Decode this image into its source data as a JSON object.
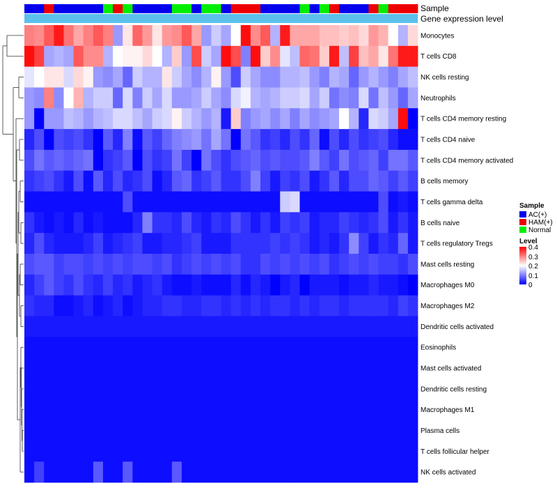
{
  "chart_data": {
    "type": "heatmap",
    "annotation_rows": [
      "Sample",
      "Gene expression level"
    ],
    "sample_groups": [
      "AC",
      "AC",
      "HAM",
      "AC",
      "AC",
      "AC",
      "AC",
      "AC",
      "Normal",
      "HAM",
      "Normal",
      "AC",
      "AC",
      "AC",
      "AC",
      "Normal",
      "Normal",
      "AC",
      "Normal",
      "Normal",
      "AC",
      "HAM",
      "HAM",
      "HAM",
      "AC",
      "AC",
      "AC",
      "AC",
      "Normal",
      "AC",
      "Normal",
      "HAM",
      "AC",
      "AC",
      "AC",
      "HAM",
      "Normal",
      "HAM",
      "HAM",
      "HAM"
    ],
    "sample_legend": {
      "title": "Sample",
      "items": [
        {
          "label": "AC(+)",
          "color": "#0000ee"
        },
        {
          "label": "HAM(+)",
          "color": "#ee0000"
        },
        {
          "label": "Normal",
          "color": "#00ee00"
        }
      ]
    },
    "gene_expression_color": "#5bc0ea",
    "level_legend": {
      "title": "Level",
      "ticks": [
        "0.4",
        "0.3",
        "0.2",
        "0.1",
        "0"
      ],
      "range": [
        0,
        0.4
      ]
    },
    "colors": {
      "low": "#0000ff",
      "mid": "#ffffff",
      "high": "#ff0000",
      "midpoint": 0.2
    },
    "row_labels": [
      "Monocytes",
      "T cells CD8",
      "NK cells resting",
      "Neutrophils",
      "T cells CD4 memory resting",
      "T cells CD4 naive",
      "T cells CD4 memory activated",
      "B cells memory",
      "T cells gamma delta",
      "B cells naive",
      "T cells regulatory  Tregs",
      "Mast cells resting",
      "Macrophages M0",
      "Macrophages M2",
      "Dendritic cells activated",
      "Eosinophils",
      "Mast cells activated",
      "Dendritic cells resting",
      "Macrophages M1",
      "Plasma cells",
      "T cells follicular helper",
      "NK cells activated"
    ],
    "values": [
      [
        0.3,
        0.29,
        0.33,
        0.38,
        0.31,
        0.27,
        0.3,
        0.33,
        0.3,
        0.12,
        0.22,
        0.32,
        0.28,
        0.22,
        0.28,
        0.29,
        0.33,
        0.27,
        0.12,
        0.16,
        0.13,
        0.2,
        0.39,
        0.29,
        0.33,
        0.14,
        0.38,
        0.27,
        0.27,
        0.27,
        0.25,
        0.25,
        0.24,
        0.25,
        0.23,
        0.28,
        0.26,
        0.2,
        0.14,
        0.23
      ],
      [
        0.39,
        0.35,
        0.13,
        0.14,
        0.13,
        0.33,
        0.29,
        0.29,
        0.14,
        0.2,
        0.21,
        0.21,
        0.23,
        0.2,
        0.14,
        0.24,
        0.12,
        0.34,
        0.16,
        0.13,
        0.39,
        0.34,
        0.1,
        0.39,
        0.24,
        0.29,
        0.18,
        0.15,
        0.32,
        0.31,
        0.24,
        0.38,
        0.15,
        0.35,
        0.25,
        0.27,
        0.22,
        0.31,
        0.38,
        0.38
      ],
      [
        0.18,
        0.2,
        0.22,
        0.22,
        0.17,
        0.23,
        0.21,
        0.12,
        0.11,
        0.13,
        0.08,
        0.16,
        0.14,
        0.14,
        0.22,
        0.16,
        0.13,
        0.11,
        0.14,
        0.21,
        0.12,
        0.06,
        0.16,
        0.13,
        0.11,
        0.11,
        0.14,
        0.14,
        0.15,
        0.12,
        0.1,
        0.14,
        0.13,
        0.08,
        0.12,
        0.14,
        0.12,
        0.1,
        0.13,
        0.15
      ],
      [
        0.12,
        0.11,
        0.3,
        0.11,
        0.2,
        0.26,
        0.14,
        0.16,
        0.16,
        0.08,
        0.17,
        0.1,
        0.16,
        0.13,
        0.17,
        0.12,
        0.12,
        0.13,
        0.16,
        0.13,
        0.11,
        0.17,
        0.19,
        0.14,
        0.13,
        0.14,
        0.16,
        0.16,
        0.17,
        0.13,
        0.16,
        0.09,
        0.11,
        0.1,
        0.17,
        0.09,
        0.15,
        0.12,
        0.08,
        0.13
      ],
      [
        0.12,
        0.0,
        0.12,
        0.12,
        0.15,
        0.14,
        0.12,
        0.14,
        0.15,
        0.17,
        0.17,
        0.15,
        0.13,
        0.16,
        0.17,
        0.21,
        0.16,
        0.14,
        0.12,
        0.14,
        0.02,
        0.24,
        0.1,
        0.12,
        0.13,
        0.11,
        0.13,
        0.1,
        0.13,
        0.11,
        0.12,
        0.13,
        0.2,
        0.14,
        0.03,
        0.17,
        0.16,
        0.13,
        0.39,
        0.0
      ],
      [
        0.03,
        0.06,
        0.0,
        0.06,
        0.05,
        0.06,
        0.04,
        0.0,
        0.07,
        0.03,
        0.1,
        0.01,
        0.07,
        0.05,
        0.08,
        0.1,
        0.11,
        0.12,
        0.09,
        0.13,
        0.09,
        0.0,
        0.09,
        0.07,
        0.04,
        0.05,
        0.03,
        0.06,
        0.04,
        0.08,
        0.01,
        0.06,
        0.03,
        0.06,
        0.04,
        0.05,
        0.06,
        0.03,
        0.01,
        0.01
      ],
      [
        0.06,
        0.09,
        0.07,
        0.08,
        0.07,
        0.08,
        0.09,
        0.0,
        0.04,
        0.05,
        0.07,
        0.0,
        0.06,
        0.04,
        0.05,
        0.09,
        0.05,
        0.0,
        0.09,
        0.06,
        0.04,
        0.06,
        0.07,
        0.08,
        0.06,
        0.07,
        0.06,
        0.06,
        0.07,
        0.1,
        0.07,
        0.05,
        0.09,
        0.06,
        0.07,
        0.08,
        0.05,
        0.09,
        0.09,
        0.07
      ],
      [
        0.04,
        0.05,
        0.06,
        0.04,
        0.02,
        0.06,
        0.01,
        0.07,
        0.03,
        0.06,
        0.03,
        0.04,
        0.06,
        0.01,
        0.03,
        0.07,
        0.08,
        0.04,
        0.05,
        0.07,
        0.04,
        0.04,
        0.06,
        0.1,
        0.05,
        0.02,
        0.05,
        0.04,
        0.06,
        0.02,
        0.04,
        0.07,
        0.03,
        0.06,
        0.06,
        0.08,
        0.07,
        0.05,
        0.07,
        0.05
      ],
      [
        0.01,
        0.01,
        0.01,
        0.01,
        0.01,
        0.01,
        0.01,
        0.01,
        0.01,
        0.01,
        0.06,
        0.01,
        0.01,
        0.01,
        0.01,
        0.01,
        0.01,
        0.01,
        0.01,
        0.01,
        0.01,
        0.01,
        0.01,
        0.01,
        0.01,
        0.01,
        0.16,
        0.17,
        0.01,
        0.01,
        0.01,
        0.01,
        0.01,
        0.01,
        0.01,
        0.01,
        0.06,
        0.01,
        0.02,
        0.01
      ],
      [
        0.04,
        0.02,
        0.01,
        0.02,
        0.01,
        0.03,
        0.01,
        0.02,
        0.01,
        0.01,
        0.01,
        0.03,
        0.1,
        0.04,
        0.04,
        0.03,
        0.06,
        0.03,
        0.02,
        0.04,
        0.03,
        0.06,
        0.04,
        0.02,
        0.04,
        0.02,
        0.05,
        0.04,
        0.05,
        0.02,
        0.03,
        0.03,
        0.05,
        0.04,
        0.03,
        0.04,
        0.06,
        0.02,
        0.04,
        0.02
      ],
      [
        0.03,
        0.06,
        0.03,
        0.02,
        0.02,
        0.02,
        0.03,
        0.05,
        0.02,
        0.03,
        0.04,
        0.05,
        0.02,
        0.02,
        0.03,
        0.03,
        0.04,
        0.05,
        0.02,
        0.02,
        0.02,
        0.04,
        0.04,
        0.04,
        0.04,
        0.05,
        0.04,
        0.05,
        0.04,
        0.02,
        0.03,
        0.02,
        0.04,
        0.11,
        0.05,
        0.02,
        0.04,
        0.03,
        0.08,
        0.02
      ],
      [
        0.06,
        0.07,
        0.07,
        0.05,
        0.06,
        0.06,
        0.05,
        0.06,
        0.05,
        0.06,
        0.05,
        0.06,
        0.06,
        0.05,
        0.06,
        0.04,
        0.05,
        0.06,
        0.05,
        0.06,
        0.05,
        0.06,
        0.04,
        0.04,
        0.06,
        0.05,
        0.06,
        0.05,
        0.06,
        0.05,
        0.06,
        0.04,
        0.05,
        0.06,
        0.05,
        0.06,
        0.05,
        0.05,
        0.04,
        0.06
      ],
      [
        0.03,
        0.05,
        0.07,
        0.05,
        0.04,
        0.06,
        0.04,
        0.03,
        0.05,
        0.03,
        0.04,
        0.02,
        0.03,
        0.04,
        0.02,
        0.01,
        0.01,
        0.02,
        0.01,
        0.01,
        0.01,
        0.03,
        0.01,
        0.03,
        0.02,
        0.0,
        0.02,
        0.03,
        0.0,
        0.02,
        0.02,
        0.02,
        0.01,
        0.02,
        0.02,
        0.03,
        0.02,
        0.02,
        0.01,
        0.0
      ],
      [
        0.04,
        0.03,
        0.03,
        0.01,
        0.01,
        0.02,
        0.03,
        0.01,
        0.02,
        0.03,
        0.01,
        0.02,
        0.03,
        0.03,
        0.04,
        0.04,
        0.03,
        0.03,
        0.04,
        0.04,
        0.03,
        0.04,
        0.03,
        0.04,
        0.03,
        0.04,
        0.04,
        0.03,
        0.04,
        0.03,
        0.04,
        0.04,
        0.03,
        0.04,
        0.04,
        0.04,
        0.04,
        0.03,
        0.05,
        0.04
      ],
      [
        0.02,
        0.02,
        0.02,
        0.02,
        0.02,
        0.02,
        0.02,
        0.02,
        0.02,
        0.02,
        0.02,
        0.02,
        0.02,
        0.02,
        0.02,
        0.02,
        0.02,
        0.02,
        0.02,
        0.02,
        0.02,
        0.02,
        0.02,
        0.02,
        0.02,
        0.02,
        0.02,
        0.02,
        0.02,
        0.02,
        0.02,
        0.02,
        0.02,
        0.02,
        0.02,
        0.02,
        0.02,
        0.02,
        0.02,
        0.02
      ],
      [
        0.01,
        0.01,
        0.01,
        0.01,
        0.01,
        0.01,
        0.01,
        0.01,
        0.01,
        0.01,
        0.01,
        0.01,
        0.01,
        0.01,
        0.01,
        0.01,
        0.01,
        0.01,
        0.01,
        0.01,
        0.01,
        0.01,
        0.01,
        0.01,
        0.01,
        0.01,
        0.01,
        0.01,
        0.01,
        0.01,
        0.01,
        0.01,
        0.01,
        0.01,
        0.01,
        0.01,
        0.01,
        0.01,
        0.01,
        0.01
      ],
      [
        0.01,
        0.01,
        0.01,
        0.01,
        0.01,
        0.01,
        0.01,
        0.01,
        0.01,
        0.01,
        0.01,
        0.01,
        0.01,
        0.01,
        0.01,
        0.01,
        0.01,
        0.01,
        0.01,
        0.01,
        0.01,
        0.01,
        0.01,
        0.01,
        0.01,
        0.01,
        0.01,
        0.01,
        0.01,
        0.01,
        0.01,
        0.01,
        0.01,
        0.01,
        0.01,
        0.01,
        0.01,
        0.01,
        0.01,
        0.01
      ],
      [
        0.01,
        0.01,
        0.01,
        0.01,
        0.01,
        0.01,
        0.01,
        0.01,
        0.01,
        0.01,
        0.01,
        0.01,
        0.01,
        0.01,
        0.01,
        0.01,
        0.01,
        0.01,
        0.01,
        0.01,
        0.01,
        0.01,
        0.01,
        0.01,
        0.01,
        0.01,
        0.01,
        0.01,
        0.01,
        0.01,
        0.01,
        0.01,
        0.01,
        0.01,
        0.01,
        0.01,
        0.01,
        0.01,
        0.01,
        0.01
      ],
      [
        0.01,
        0.01,
        0.01,
        0.01,
        0.01,
        0.01,
        0.01,
        0.01,
        0.01,
        0.01,
        0.01,
        0.01,
        0.01,
        0.01,
        0.01,
        0.01,
        0.01,
        0.01,
        0.01,
        0.01,
        0.01,
        0.01,
        0.01,
        0.01,
        0.01,
        0.01,
        0.01,
        0.01,
        0.01,
        0.01,
        0.01,
        0.01,
        0.01,
        0.01,
        0.01,
        0.01,
        0.01,
        0.01,
        0.01,
        0.01
      ],
      [
        0.01,
        0.01,
        0.01,
        0.01,
        0.01,
        0.01,
        0.01,
        0.01,
        0.01,
        0.01,
        0.01,
        0.01,
        0.01,
        0.01,
        0.01,
        0.01,
        0.01,
        0.01,
        0.01,
        0.01,
        0.01,
        0.01,
        0.01,
        0.01,
        0.01,
        0.01,
        0.01,
        0.01,
        0.01,
        0.01,
        0.01,
        0.01,
        0.01,
        0.01,
        0.01,
        0.01,
        0.01,
        0.01,
        0.01,
        0.01
      ],
      [
        0.01,
        0.01,
        0.01,
        0.01,
        0.01,
        0.01,
        0.01,
        0.01,
        0.01,
        0.01,
        0.01,
        0.01,
        0.01,
        0.01,
        0.01,
        0.01,
        0.01,
        0.01,
        0.01,
        0.01,
        0.01,
        0.01,
        0.01,
        0.01,
        0.01,
        0.01,
        0.01,
        0.01,
        0.01,
        0.01,
        0.01,
        0.01,
        0.01,
        0.01,
        0.01,
        0.01,
        0.01,
        0.01,
        0.01,
        0.01
      ],
      [
        0.01,
        0.05,
        0.01,
        0.01,
        0.01,
        0.01,
        0.01,
        0.07,
        0.01,
        0.01,
        0.07,
        0.01,
        0.01,
        0.01,
        0.01,
        0.07,
        0.01,
        0.01,
        0.01,
        0.01,
        0.01,
        0.01,
        0.01,
        0.01,
        0.01,
        0.01,
        0.01,
        0.01,
        0.01,
        0.01,
        0.01,
        0.01,
        0.01,
        0.01,
        0.01,
        0.01,
        0.01,
        0.01,
        0.01,
        0.01
      ]
    ]
  }
}
